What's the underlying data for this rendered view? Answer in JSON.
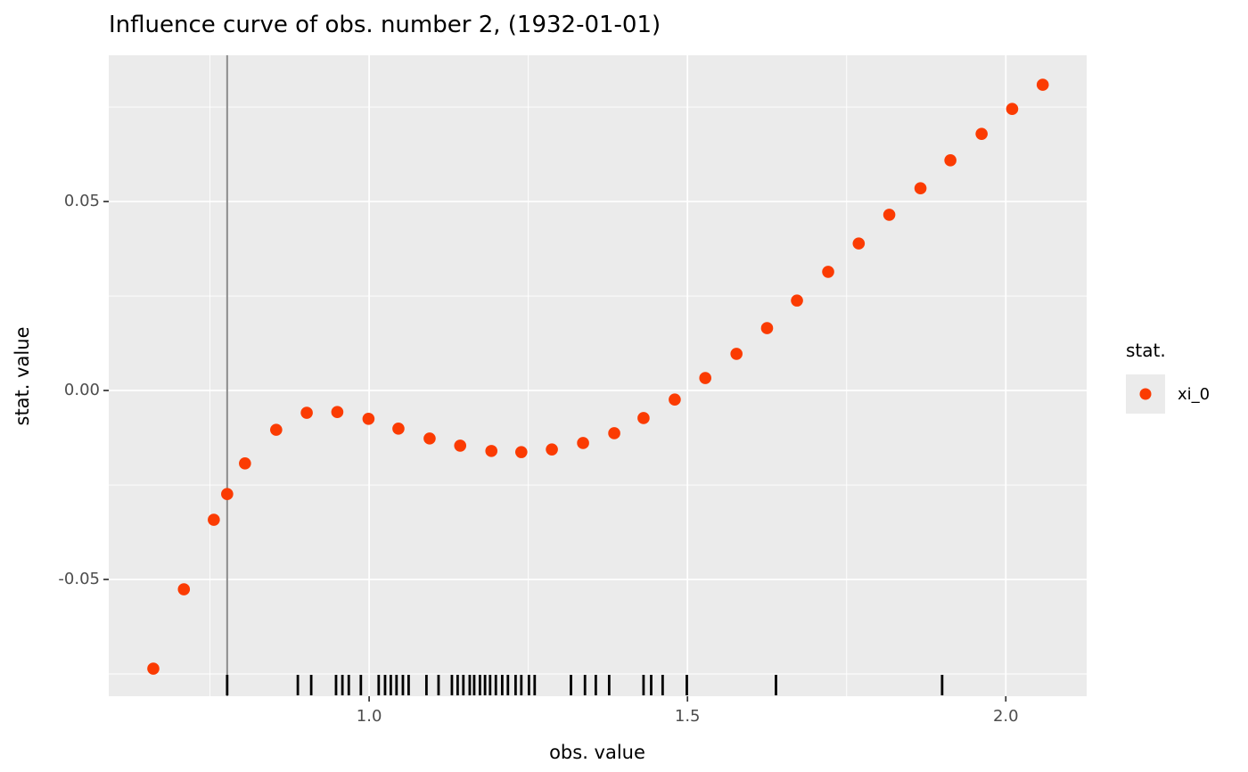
{
  "chart_data": {
    "type": "scatter",
    "title": "Influence curve of obs. number 2, (1932-01-01)",
    "xlabel": "obs. value",
    "ylabel": "stat. value",
    "legend": {
      "title": "stat.",
      "entries": [
        {
          "label": "xi_0"
        }
      ]
    },
    "xlim": [
      0.591,
      2.127
    ],
    "ylim": [
      -0.0809,
      0.0887
    ],
    "xticks": {
      "values": [
        1.0,
        1.5,
        2.0
      ],
      "labels": [
        "1.0",
        "1.5",
        "2.0"
      ]
    },
    "yticks": {
      "values": [
        0.05,
        0.0,
        -0.05
      ],
      "labels": [
        "0.05",
        "0.00",
        "-0.05"
      ]
    },
    "x_minor": [
      0.75,
      1.25,
      1.75
    ],
    "y_minor": [
      0.075,
      0.025,
      -0.025,
      -0.075
    ],
    "grid": true,
    "legend_position": "right",
    "vline_x": 0.777,
    "series": [
      {
        "name": "xi_0",
        "points": [
          [
            0.661,
            -0.0736
          ],
          [
            0.709,
            -0.0526
          ],
          [
            0.756,
            -0.0342
          ],
          [
            0.777,
            -0.0274
          ],
          [
            0.805,
            -0.0193
          ],
          [
            0.854,
            -0.0104
          ],
          [
            0.902,
            -0.0059
          ],
          [
            0.95,
            -0.0057
          ],
          [
            0.999,
            -0.0075
          ],
          [
            1.046,
            -0.0101
          ],
          [
            1.095,
            -0.0127
          ],
          [
            1.143,
            -0.0146
          ],
          [
            1.192,
            -0.016
          ],
          [
            1.239,
            -0.0163
          ],
          [
            1.287,
            -0.0156
          ],
          [
            1.336,
            -0.0139
          ],
          [
            1.385,
            -0.0113
          ],
          [
            1.431,
            -0.0073
          ],
          [
            1.48,
            -0.0024
          ],
          [
            1.528,
            0.0033
          ],
          [
            1.577,
            0.0097
          ],
          [
            1.625,
            0.0165
          ],
          [
            1.672,
            0.0238
          ],
          [
            1.721,
            0.0314
          ],
          [
            1.769,
            0.0389
          ],
          [
            1.817,
            0.0465
          ],
          [
            1.866,
            0.0535
          ],
          [
            1.913,
            0.0609
          ],
          [
            1.962,
            0.0679
          ],
          [
            2.01,
            0.0745
          ],
          [
            2.058,
            0.0809
          ]
        ]
      }
    ],
    "rug_x": [
      0.777,
      0.888,
      0.909,
      0.948,
      0.958,
      0.968,
      0.987,
      1.015,
      1.025,
      1.034,
      1.043,
      1.053,
      1.062,
      1.09,
      1.109,
      1.13,
      1.139,
      1.148,
      1.158,
      1.165,
      1.174,
      1.182,
      1.19,
      1.199,
      1.209,
      1.218,
      1.23,
      1.239,
      1.251,
      1.26,
      1.317,
      1.339,
      1.356,
      1.377,
      1.431,
      1.443,
      1.461,
      1.499,
      1.639,
      1.9
    ]
  },
  "colors": {
    "point": "#fb3b02",
    "panel_bg": "#ebebeb",
    "grid": "#ffffff",
    "vline": "#8c8c8c",
    "rug": "#000000",
    "tick_mark": "#333333",
    "tick_text": "#4d4d4d"
  }
}
